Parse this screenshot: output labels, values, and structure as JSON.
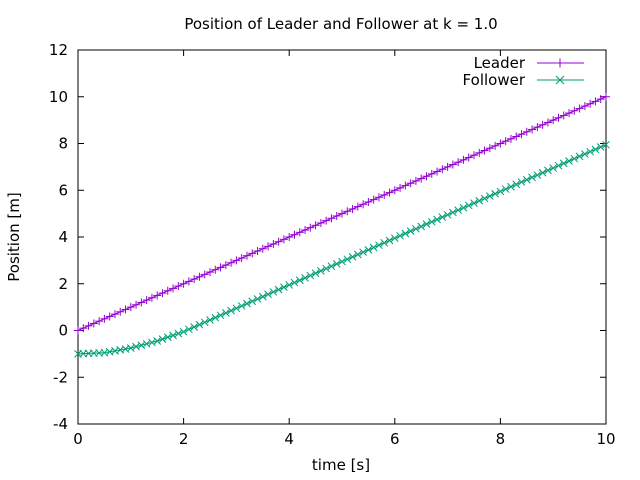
{
  "chart_data": {
    "type": "line",
    "title": "Position of Leader and Follower at k = 1.0",
    "xlabel": "time [s]",
    "ylabel": "Position [m]",
    "xlim": [
      0,
      10
    ],
    "ylim": [
      -4,
      12
    ],
    "xticks": [
      0,
      2,
      4,
      6,
      8,
      10
    ],
    "yticks": [
      -4,
      -2,
      0,
      2,
      4,
      6,
      8,
      10,
      12
    ],
    "grid": false,
    "legend_position": "top-right",
    "series": [
      {
        "name": "Leader",
        "color": "#9400d3",
        "marker": "plus",
        "x": [
          0,
          1,
          2,
          3,
          4,
          5,
          6,
          7,
          8,
          9,
          10
        ],
        "y": [
          0,
          1,
          2,
          3,
          4,
          5,
          6,
          7,
          8,
          9,
          10
        ]
      },
      {
        "name": "Follower",
        "color": "#009e73",
        "marker": "cross",
        "x": [
          0,
          0.5,
          1,
          1.5,
          2,
          2.5,
          3,
          3.5,
          4,
          4.5,
          5,
          5.5,
          6,
          6.5,
          7,
          7.5,
          8,
          8.5,
          9,
          9.5,
          10
        ],
        "y": [
          -1.0,
          -0.95,
          -0.75,
          -0.45,
          -0.05,
          0.45,
          0.95,
          1.45,
          1.95,
          2.45,
          2.95,
          3.45,
          3.95,
          4.45,
          4.95,
          5.45,
          5.95,
          6.45,
          6.95,
          7.45,
          7.95
        ]
      }
    ]
  }
}
